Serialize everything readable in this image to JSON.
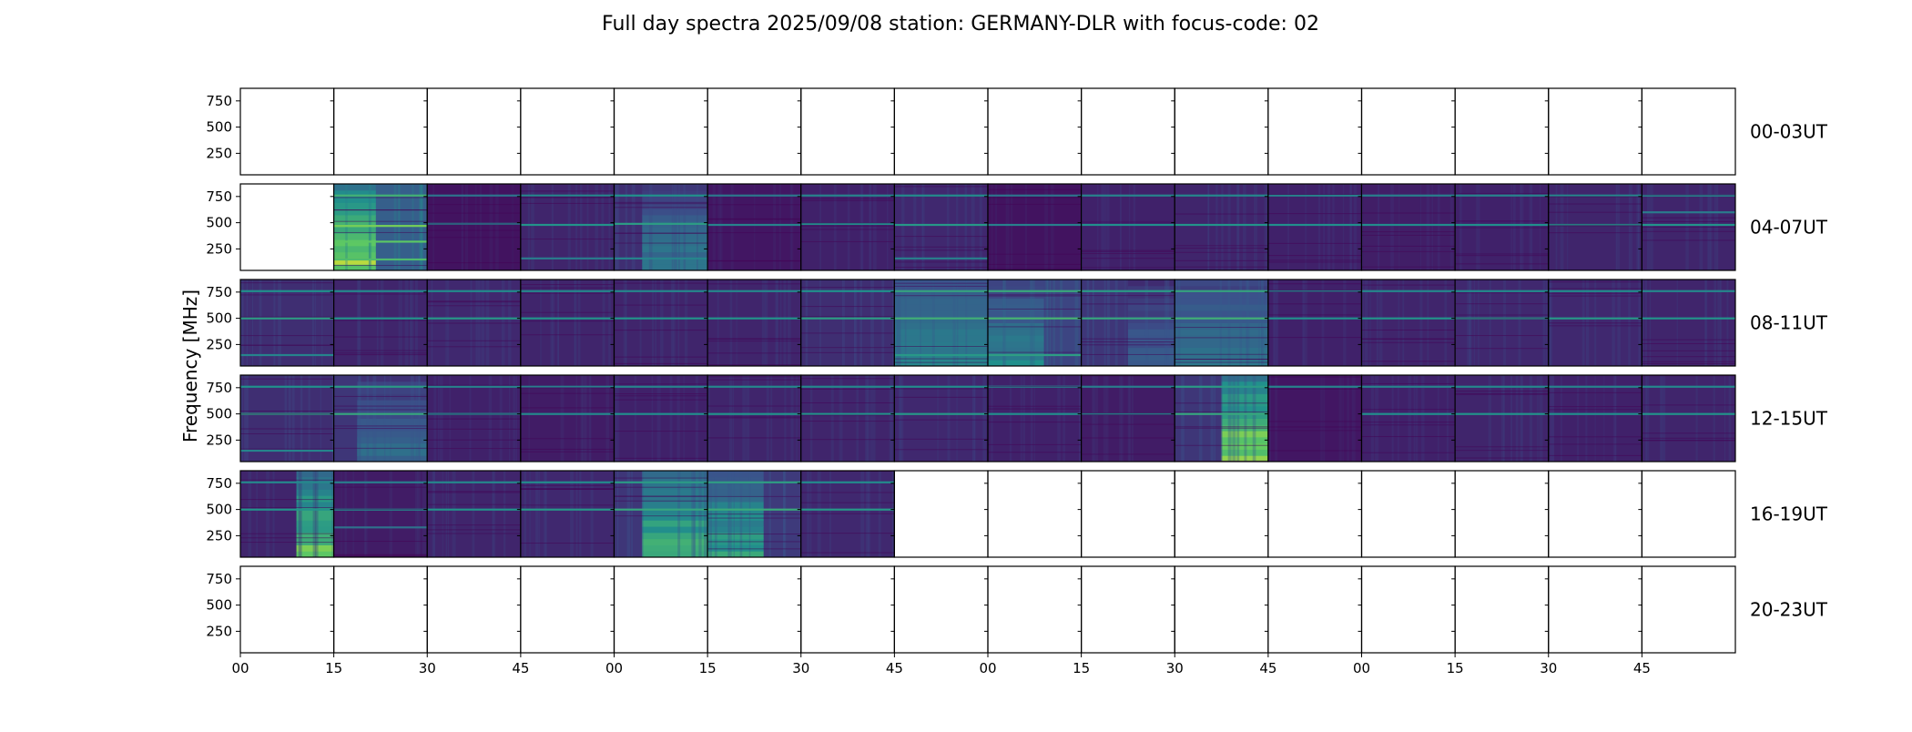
{
  "chart_data": {
    "type": "heatmap",
    "title": "Full day spectra 2025/09/08 station: GERMANY-DLR with focus-code: 02",
    "ylabel": "Frequency [MHz]",
    "xlabel": "",
    "y_ticks": [
      250,
      500,
      750
    ],
    "y_tick_labels": [
      "250",
      "500",
      "750"
    ],
    "ylim": [
      45,
      870
    ],
    "x_tick_labels": [
      "00",
      "15",
      "30",
      "45",
      "00",
      "15",
      "30",
      "45",
      "00",
      "15",
      "30",
      "45",
      "00",
      "15",
      "30",
      "45"
    ],
    "colormap": "viridis",
    "colormap_stops": [
      "#440154",
      "#3b528b",
      "#21918c",
      "#5ec962",
      "#fde725"
    ],
    "rows": [
      {
        "label": "00-03UT",
        "panels": [
          {
            "present": false
          },
          {
            "present": false
          },
          {
            "present": false
          },
          {
            "present": false
          },
          {
            "present": false
          },
          {
            "present": false
          },
          {
            "present": false
          },
          {
            "present": false
          },
          {
            "present": false
          },
          {
            "present": false
          },
          {
            "present": false
          },
          {
            "present": false
          },
          {
            "present": false
          },
          {
            "present": false
          },
          {
            "present": false
          },
          {
            "present": false
          }
        ]
      },
      {
        "label": "04-07UT",
        "panels": [
          {
            "present": false
          },
          {
            "present": true,
            "level": 0.55,
            "lines": [
              470,
              320,
              150,
              760
            ],
            "burst": [
              0,
              0.45,
              0.95
            ]
          },
          {
            "present": true,
            "level": 0.1,
            "lines": [
              490,
              760
            ]
          },
          {
            "present": true,
            "level": 0.2,
            "lines": [
              480,
              760,
              160
            ]
          },
          {
            "present": true,
            "level": 0.25,
            "lines": [
              490,
              760,
              160
            ],
            "burst": [
              0.3,
              1,
              0.45
            ]
          },
          {
            "present": true,
            "level": 0.12,
            "lines": [
              480,
              760
            ]
          },
          {
            "present": true,
            "level": 0.18,
            "lines": [
              490,
              760
            ]
          },
          {
            "present": true,
            "level": 0.22,
            "lines": [
              480,
              760,
              160
            ]
          },
          {
            "present": true,
            "level": 0.1,
            "lines": [
              480,
              760
            ]
          },
          {
            "present": true,
            "level": 0.18,
            "lines": [
              480,
              760
            ]
          },
          {
            "present": true,
            "level": 0.2,
            "lines": [
              480,
              760
            ]
          },
          {
            "present": true,
            "level": 0.18,
            "lines": [
              480,
              760
            ]
          },
          {
            "present": true,
            "level": 0.16,
            "lines": [
              480,
              760
            ]
          },
          {
            "present": true,
            "level": 0.18,
            "lines": [
              480,
              760
            ]
          },
          {
            "present": true,
            "level": 0.2,
            "lines": [
              480,
              760
            ]
          },
          {
            "present": true,
            "level": 0.2,
            "lines": [
              480,
              760,
              600
            ]
          }
        ]
      },
      {
        "label": "08-11UT",
        "panels": [
          {
            "present": true,
            "level": 0.25,
            "lines": [
              500,
              760,
              150
            ]
          },
          {
            "present": true,
            "level": 0.2,
            "lines": [
              500,
              760
            ]
          },
          {
            "present": true,
            "level": 0.22,
            "lines": [
              500,
              760
            ]
          },
          {
            "present": true,
            "level": 0.2,
            "lines": [
              500,
              760
            ]
          },
          {
            "present": true,
            "level": 0.2,
            "lines": [
              500,
              760
            ]
          },
          {
            "present": true,
            "level": 0.2,
            "lines": [
              500,
              760
            ]
          },
          {
            "present": true,
            "level": 0.25,
            "lines": [
              500,
              760
            ]
          },
          {
            "present": true,
            "level": 0.35,
            "lines": [
              500,
              760,
              150
            ],
            "burst": [
              0,
              1,
              0.55
            ]
          },
          {
            "present": true,
            "level": 0.38,
            "lines": [
              500,
              760,
              150
            ],
            "burst": [
              0,
              0.6,
              0.5
            ]
          },
          {
            "present": true,
            "level": 0.3,
            "lines": [
              500,
              760
            ],
            "burst": [
              0.5,
              1,
              0.35
            ]
          },
          {
            "present": true,
            "level": 0.35,
            "lines": [
              500,
              760
            ],
            "burst": [
              0,
              1,
              0.45
            ]
          },
          {
            "present": true,
            "level": 0.18,
            "lines": [
              500,
              760
            ]
          },
          {
            "present": true,
            "level": 0.2,
            "lines": [
              500,
              760
            ]
          },
          {
            "present": true,
            "level": 0.22,
            "lines": [
              500,
              760
            ]
          },
          {
            "present": true,
            "level": 0.22,
            "lines": [
              500,
              760
            ]
          },
          {
            "present": true,
            "level": 0.2,
            "lines": [
              500,
              760
            ]
          }
        ]
      },
      {
        "label": "12-15UT",
        "panels": [
          {
            "present": true,
            "level": 0.25,
            "lines": [
              500,
              760,
              150
            ]
          },
          {
            "present": true,
            "level": 0.3,
            "lines": [
              500,
              760
            ],
            "burst": [
              0.25,
              1,
              0.4
            ]
          },
          {
            "present": true,
            "level": 0.18,
            "lines": [
              500,
              760
            ]
          },
          {
            "present": true,
            "level": 0.15,
            "lines": [
              500,
              760
            ]
          },
          {
            "present": true,
            "level": 0.18,
            "lines": [
              500,
              760
            ]
          },
          {
            "present": true,
            "level": 0.2,
            "lines": [
              500,
              760
            ]
          },
          {
            "present": true,
            "level": 0.2,
            "lines": [
              500,
              760
            ]
          },
          {
            "present": true,
            "level": 0.22,
            "lines": [
              500,
              760
            ]
          },
          {
            "present": true,
            "level": 0.18,
            "lines": [
              500,
              760
            ]
          },
          {
            "present": true,
            "level": 0.15,
            "lines": [
              500,
              760
            ]
          },
          {
            "present": true,
            "level": 0.3,
            "lines": [
              500,
              760
            ],
            "burst": [
              0.5,
              1,
              0.95
            ]
          },
          {
            "present": true,
            "level": 0.12,
            "lines": [
              760
            ]
          },
          {
            "present": true,
            "level": 0.18,
            "lines": [
              500,
              760
            ]
          },
          {
            "present": true,
            "level": 0.2,
            "lines": [
              500,
              760
            ]
          },
          {
            "present": true,
            "level": 0.18,
            "lines": [
              500,
              760
            ]
          },
          {
            "present": true,
            "level": 0.2,
            "lines": [
              500,
              760
            ]
          }
        ]
      },
      {
        "label": "16-19UT",
        "panels": [
          {
            "present": true,
            "level": 0.2,
            "lines": [
              500,
              760
            ],
            "burst": [
              0.6,
              1,
              0.85
            ]
          },
          {
            "present": true,
            "level": 0.15,
            "lines": [
              500,
              760,
              330
            ]
          },
          {
            "present": true,
            "level": 0.2,
            "lines": [
              500,
              760
            ]
          },
          {
            "present": true,
            "level": 0.22,
            "lines": [
              500,
              760
            ]
          },
          {
            "present": true,
            "level": 0.3,
            "lines": [
              500,
              760
            ],
            "burst": [
              0.3,
              1,
              0.75
            ]
          },
          {
            "present": true,
            "level": 0.32,
            "lines": [
              500,
              760
            ],
            "burst": [
              0,
              0.6,
              0.65
            ]
          },
          {
            "present": true,
            "level": 0.22,
            "lines": [
              500,
              760
            ]
          },
          {
            "present": false
          },
          {
            "present": false
          },
          {
            "present": false
          },
          {
            "present": false
          },
          {
            "present": false
          },
          {
            "present": false
          },
          {
            "present": false
          },
          {
            "present": false
          },
          {
            "present": false
          }
        ]
      },
      {
        "label": "20-23UT",
        "panels": [
          {
            "present": false
          },
          {
            "present": false
          },
          {
            "present": false
          },
          {
            "present": false
          },
          {
            "present": false
          },
          {
            "present": false
          },
          {
            "present": false
          },
          {
            "present": false
          },
          {
            "present": false
          },
          {
            "present": false
          },
          {
            "present": false
          },
          {
            "present": false
          },
          {
            "present": false
          },
          {
            "present": false
          },
          {
            "present": false
          },
          {
            "present": false
          }
        ]
      }
    ]
  }
}
